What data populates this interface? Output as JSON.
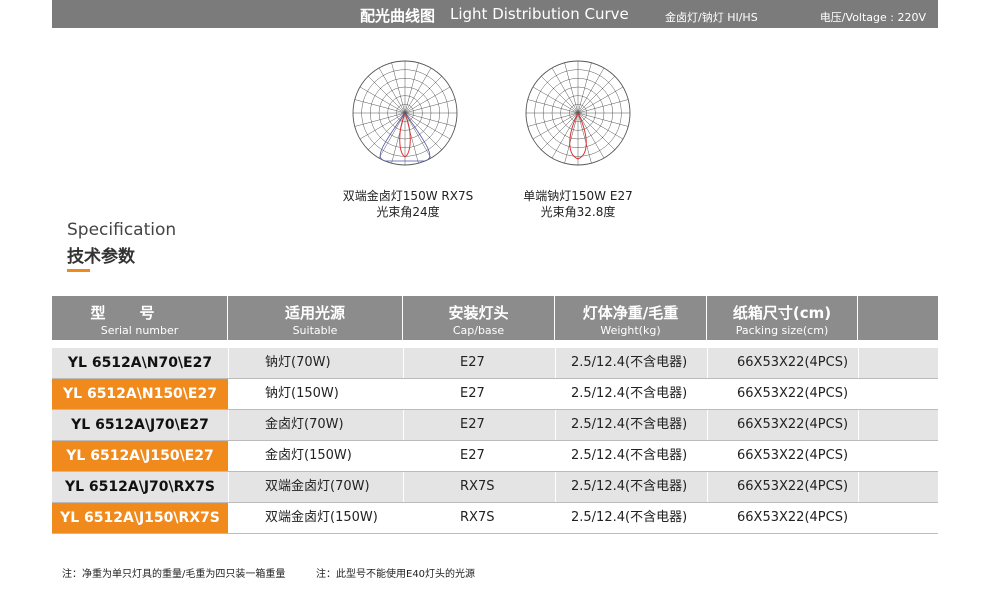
{
  "header": {
    "title_cn": "配光曲线图",
    "title_en": "Light Distribution Curve",
    "lamp_type": "金卤灯/钠灯  HI/HS",
    "voltage": "电压/Voltage : 220V"
  },
  "diagrams": [
    {
      "caption": "双端金卤灯150W   RX7S",
      "beam_angle": "光束角24度"
    },
    {
      "caption": "单端钠灯150W  E27",
      "beam_angle": "光束角32.8度"
    }
  ],
  "section": {
    "title_en": "Specification",
    "title_cn": "技术参数"
  },
  "table": {
    "columns": [
      {
        "cn": "型号",
        "en": "Serial number"
      },
      {
        "cn": "适用光源",
        "en": "Suitable"
      },
      {
        "cn": "安装灯头",
        "en": "Cap/base"
      },
      {
        "cn": "灯体净重/毛重",
        "en": "Weight(kg)"
      },
      {
        "cn": "纸箱尺寸(cm)",
        "en": "Packing size(cm)"
      }
    ],
    "rows": [
      [
        "YL 6512A\\N70\\E27",
        "钠灯(70W)",
        "E27",
        "2.5/12.4(不含电器)",
        "66X53X22(4PCS)"
      ],
      [
        "YL 6512A\\N150\\E27",
        "钠灯(150W)",
        "E27",
        "2.5/12.4(不含电器)",
        "66X53X22(4PCS)"
      ],
      [
        "YL 6512A\\J70\\E27",
        "金卤灯(70W)",
        "E27",
        "2.5/12.4(不含电器)",
        "66X53X22(4PCS)"
      ],
      [
        "YL 6512A\\J150\\E27",
        "金卤灯(150W)",
        "E27",
        "2.5/12.4(不含电器)",
        "66X53X22(4PCS)"
      ],
      [
        "YL 6512A\\J70\\RX7S",
        "双端金卤灯(70W)",
        "RX7S",
        "2.5/12.4(不含电器)",
        "66X53X22(4PCS)"
      ],
      [
        "YL 6512A\\J150\\RX7S",
        "双端金卤灯(150W)",
        "RX7S",
        "2.5/12.4(不含电器)",
        "66X53X22(4PCS)"
      ]
    ]
  },
  "notes": [
    "注：净重为单只灯具的重量/毛重为四只装一箱重量",
    "注：此型号不能使用E40灯头的光源"
  ]
}
